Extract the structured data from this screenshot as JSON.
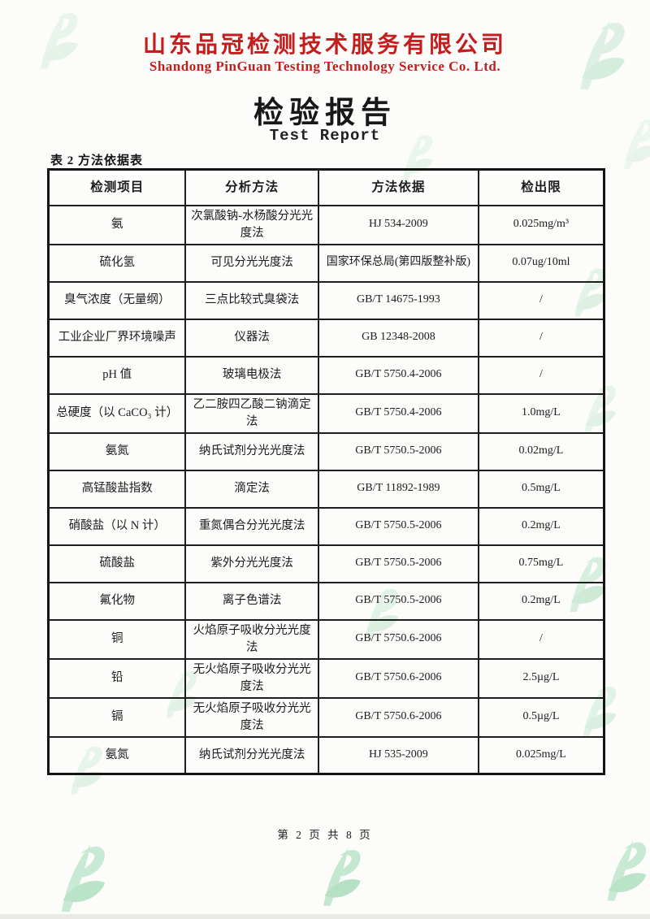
{
  "header": {
    "company_cn": "山东品冠检测技术服务有限公司",
    "company_en": "Shandong PinGuan Testing Technology Service Co. Ltd.",
    "report_title_cn": "检验报告",
    "report_title_en": "Test Report"
  },
  "table_caption": "表 2 方法依据表",
  "table": {
    "headers": [
      "检测项目",
      "分析方法",
      "方法依据",
      "检出限"
    ],
    "rows": [
      [
        "氨",
        "次氯酸钠-水杨酸分光光度法",
        "HJ 534-2009",
        "0.025mg/m³"
      ],
      [
        "硫化氢",
        "可见分光光度法",
        "国家环保总局(第四版整补版)",
        "0.07ug/10ml"
      ],
      [
        "臭气浓度（无量纲）",
        "三点比较式臭袋法",
        "GB/T 14675-1993",
        "/"
      ],
      [
        "工业企业厂界环境噪声",
        "仪器法",
        "GB 12348-2008",
        "/"
      ],
      [
        "pH 值",
        "玻璃电极法",
        "GB/T 5750.4-2006",
        "/"
      ],
      [
        "总硬度（以 CaCO₃ 计）",
        "乙二胺四乙酸二钠滴定法",
        "GB/T 5750.4-2006",
        "1.0mg/L"
      ],
      [
        "氨氮",
        "纳氏试剂分光光度法",
        "GB/T 5750.5-2006",
        "0.02mg/L"
      ],
      [
        "高锰酸盐指数",
        "滴定法",
        "GB/T 11892-1989",
        "0.5mg/L"
      ],
      [
        "硝酸盐（以 N 计）",
        "重氮偶合分光光度法",
        "GB/T 5750.5-2006",
        "0.2mg/L"
      ],
      [
        "硫酸盐",
        "紫外分光光度法",
        "GB/T 5750.5-2006",
        "0.75mg/L"
      ],
      [
        "氟化物",
        "离子色谱法",
        "GB/T 5750.5-2006",
        "0.2mg/L"
      ],
      [
        "铜",
        "火焰原子吸收分光光度法",
        "GB/T 5750.6-2006",
        "/"
      ],
      [
        "铅",
        "无火焰原子吸收分光光度法",
        "GB/T 5750.6-2006",
        "2.5µg/L"
      ],
      [
        "镉",
        "无火焰原子吸收分光光度法",
        "GB/T 5750.6-2006",
        "0.5µg/L"
      ],
      [
        "氨氮",
        "纳氏试剂分光光度法",
        "HJ 535-2009",
        "0.025mg/L"
      ]
    ]
  },
  "footer": {
    "page_indicator": "第 2 页 共 8 页"
  },
  "icons": {
    "watermark": "pinguan-leaf-p-logo"
  },
  "colors": {
    "title_red": "#c21e1e",
    "text_black": "#1c1c1c",
    "border_black": "#1e1e1e",
    "watermark_green_light": "#9fdab4",
    "watermark_green_dark": "#86cf9f",
    "paper": "#fcfcfa"
  }
}
